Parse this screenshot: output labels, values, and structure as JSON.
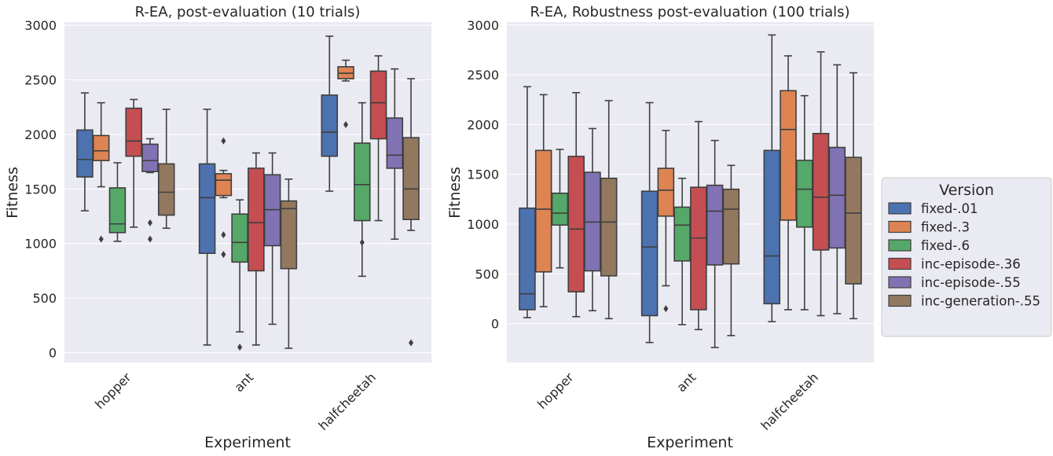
{
  "chart_data": [
    {
      "type": "boxplot",
      "title": "R-EA, post-evaluation (10 trials)",
      "xlabel": "Experiment",
      "ylabel": "Fitness",
      "categories": [
        "hopper",
        "ant",
        "halfcheetah"
      ],
      "yticks": [
        0,
        500,
        1000,
        1500,
        2000,
        2500,
        3000
      ],
      "ylim": [
        -90,
        3030
      ],
      "series": [
        {
          "name": "fixed-.01",
          "boxes": [
            {
              "min": 1300,
              "q1": 1610,
              "median": 1770,
              "q3": 2040,
              "max": 2380,
              "outliers": []
            },
            {
              "min": 70,
              "q1": 910,
              "median": 1420,
              "q3": 1730,
              "max": 2230,
              "outliers": []
            },
            {
              "min": 1480,
              "q1": 1800,
              "median": 2020,
              "q3": 2360,
              "max": 2900,
              "outliers": []
            }
          ]
        },
        {
          "name": "fixed-.3",
          "boxes": [
            {
              "min": 1520,
              "q1": 1760,
              "median": 1850,
              "q3": 1990,
              "max": 2290,
              "outliers": [
                1040
              ]
            },
            {
              "min": 1420,
              "q1": 1440,
              "median": 1580,
              "q3": 1640,
              "max": 1670,
              "outliers": [
                1940,
                1080,
                900
              ]
            },
            {
              "min": 2490,
              "q1": 2510,
              "median": 2560,
              "q3": 2620,
              "max": 2680,
              "outliers": [
                2090
              ]
            }
          ]
        },
        {
          "name": "fixed-.6",
          "boxes": [
            {
              "min": 1020,
              "q1": 1100,
              "median": 1180,
              "q3": 1510,
              "max": 1740,
              "outliers": []
            },
            {
              "min": 190,
              "q1": 830,
              "median": 1010,
              "q3": 1270,
              "max": 1400,
              "outliers": [
                50
              ]
            },
            {
              "min": 700,
              "q1": 1210,
              "median": 1540,
              "q3": 1920,
              "max": 2290,
              "outliers": [
                1010
              ]
            }
          ]
        },
        {
          "name": "inc-episode-.36",
          "boxes": [
            {
              "min": 1150,
              "q1": 1800,
              "median": 1940,
              "q3": 2240,
              "max": 2320,
              "outliers": []
            },
            {
              "min": 70,
              "q1": 750,
              "median": 1190,
              "q3": 1690,
              "max": 1830,
              "outliers": []
            },
            {
              "min": 1210,
              "q1": 1960,
              "median": 2290,
              "q3": 2580,
              "max": 2720,
              "outliers": []
            }
          ]
        },
        {
          "name": "inc-episode-.55",
          "boxes": [
            {
              "min": 1650,
              "q1": 1660,
              "median": 1760,
              "q3": 1910,
              "max": 1960,
              "outliers": [
                1190,
                1040
              ]
            },
            {
              "min": 260,
              "q1": 980,
              "median": 1310,
              "q3": 1630,
              "max": 1830,
              "outliers": []
            },
            {
              "min": 1040,
              "q1": 1690,
              "median": 1810,
              "q3": 2150,
              "max": 2600,
              "outliers": []
            }
          ]
        },
        {
          "name": "inc-generation-.55",
          "boxes": [
            {
              "min": 1140,
              "q1": 1260,
              "median": 1470,
              "q3": 1730,
              "max": 2230,
              "outliers": []
            },
            {
              "min": 40,
              "q1": 770,
              "median": 1320,
              "q3": 1390,
              "max": 1590,
              "outliers": []
            },
            {
              "min": 1120,
              "q1": 1220,
              "median": 1500,
              "q3": 1970,
              "max": 2510,
              "outliers": [
                90
              ]
            }
          ]
        }
      ]
    },
    {
      "type": "boxplot",
      "title": "R-EA, Robustness post-evaluation (100 trials)",
      "xlabel": "Experiment",
      "ylabel": "Fitness",
      "categories": [
        "hopper",
        "ant",
        "halfcheetah"
      ],
      "yticks": [
        0,
        500,
        1000,
        1500,
        2000,
        2500,
        3000
      ],
      "ylim": [
        -390,
        3030
      ],
      "series": [
        {
          "name": "fixed-.01",
          "boxes": [
            {
              "min": 60,
              "q1": 140,
              "median": 300,
              "q3": 1160,
              "max": 2380,
              "outliers": []
            },
            {
              "min": -190,
              "q1": 80,
              "median": 770,
              "q3": 1330,
              "max": 2220,
              "outliers": []
            },
            {
              "min": 20,
              "q1": 200,
              "median": 680,
              "q3": 1740,
              "max": 2900,
              "outliers": []
            }
          ]
        },
        {
          "name": "fixed-.3",
          "boxes": [
            {
              "min": 170,
              "q1": 520,
              "median": 1150,
              "q3": 1740,
              "max": 2300,
              "outliers": []
            },
            {
              "min": 380,
              "q1": 1080,
              "median": 1340,
              "q3": 1560,
              "max": 1940,
              "outliers": [
                150
              ]
            },
            {
              "min": 140,
              "q1": 1040,
              "median": 1950,
              "q3": 2340,
              "max": 2690,
              "outliers": []
            }
          ]
        },
        {
          "name": "fixed-.6",
          "boxes": [
            {
              "min": 560,
              "q1": 990,
              "median": 1110,
              "q3": 1310,
              "max": 1750,
              "outliers": []
            },
            {
              "min": -10,
              "q1": 630,
              "median": 990,
              "q3": 1170,
              "max": 1460,
              "outliers": []
            },
            {
              "min": 140,
              "q1": 970,
              "median": 1350,
              "q3": 1640,
              "max": 2290,
              "outliers": []
            }
          ]
        },
        {
          "name": "inc-episode-.36",
          "boxes": [
            {
              "min": 70,
              "q1": 320,
              "median": 950,
              "q3": 1680,
              "max": 2320,
              "outliers": []
            },
            {
              "min": -60,
              "q1": 140,
              "median": 860,
              "q3": 1370,
              "max": 2030,
              "outliers": []
            },
            {
              "min": 80,
              "q1": 740,
              "median": 1270,
              "q3": 1910,
              "max": 2730,
              "outliers": []
            }
          ]
        },
        {
          "name": "inc-episode-.55",
          "boxes": [
            {
              "min": 130,
              "q1": 530,
              "median": 1020,
              "q3": 1520,
              "max": 1960,
              "outliers": []
            },
            {
              "min": -240,
              "q1": 590,
              "median": 1130,
              "q3": 1390,
              "max": 1840,
              "outliers": []
            },
            {
              "min": 100,
              "q1": 760,
              "median": 1290,
              "q3": 1770,
              "max": 2600,
              "outliers": []
            }
          ]
        },
        {
          "name": "inc-generation-.55",
          "boxes": [
            {
              "min": 50,
              "q1": 480,
              "median": 1020,
              "q3": 1460,
              "max": 2240,
              "outliers": []
            },
            {
              "min": -120,
              "q1": 600,
              "median": 1150,
              "q3": 1350,
              "max": 1590,
              "outliers": []
            },
            {
              "min": 50,
              "q1": 400,
              "median": 1110,
              "q3": 1670,
              "max": 2520,
              "outliers": []
            }
          ]
        }
      ]
    }
  ],
  "legend": {
    "title": "Version",
    "placement": "center-right",
    "items": [
      {
        "label": "fixed-.01",
        "color": "#4c72b0"
      },
      {
        "label": "fixed-.3",
        "color": "#dd8452"
      },
      {
        "label": "fixed-.6",
        "color": "#55a868"
      },
      {
        "label": "inc-episode-.36",
        "color": "#c44e52"
      },
      {
        "label": "inc-episode-.55",
        "color": "#8172b3"
      },
      {
        "label": "inc-generation-.55",
        "color": "#937860"
      }
    ]
  },
  "colors": {
    "axes_bg": "#eaeaf2",
    "grid": "#ffffff",
    "line": "#3f3f3f"
  }
}
